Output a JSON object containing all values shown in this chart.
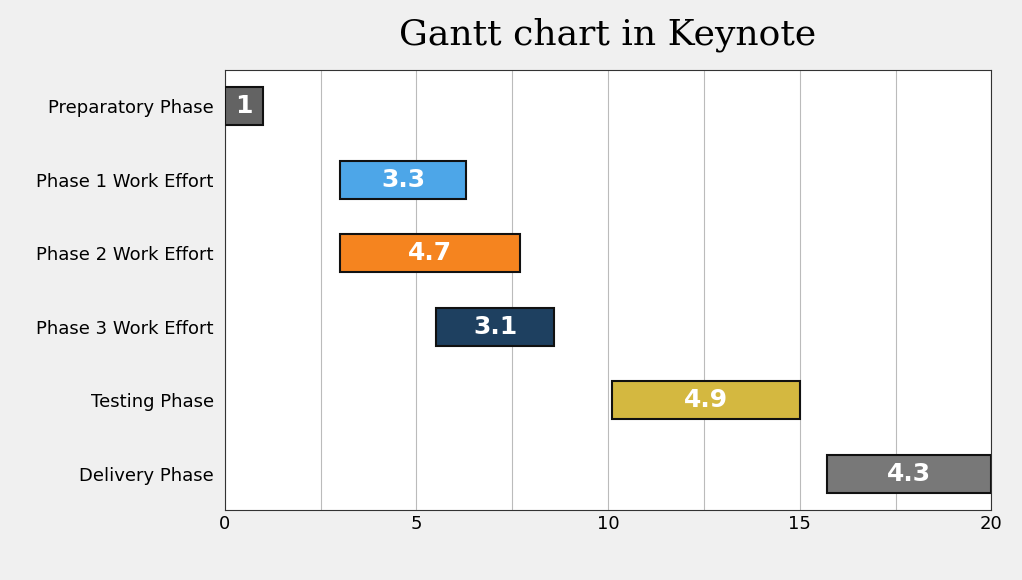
{
  "title": "Gantt chart in Keynote",
  "title_fontsize": 26,
  "title_fontfamily": "serif",
  "categories": [
    "Preparatory Phase",
    "Phase 1 Work Effort",
    "Phase 2 Work Effort",
    "Phase 3 Work Effort",
    "Testing Phase",
    "Delivery Phase"
  ],
  "starts": [
    0,
    3.0,
    3.0,
    5.5,
    10.1,
    15.7
  ],
  "widths": [
    1,
    3.3,
    4.7,
    3.1,
    4.9,
    4.3
  ],
  "colors": [
    "#636363",
    "#4da6e8",
    "#f5841f",
    "#1e4060",
    "#d4b840",
    "#787878"
  ],
  "label_colors": [
    "#ffffff",
    "#ffffff",
    "#ffffff",
    "#ffffff",
    "#ffffff",
    "#ffffff"
  ],
  "labels": [
    "1",
    "3.3",
    "4.7",
    "3.1",
    "4.9",
    "4.3"
  ],
  "bar_height": 0.52,
  "xlim": [
    0,
    20
  ],
  "xticks": [
    0,
    5,
    10,
    15,
    20
  ],
  "label_fontsize": 18,
  "ylabel_fontsize": 13,
  "tick_fontsize": 13,
  "background_color": "#f0f0f0",
  "plot_bg_color": "#ffffff",
  "grid_color": "#bbbbbb",
  "grid_xticks": [
    0,
    2.5,
    5,
    7.5,
    10,
    12.5,
    15,
    17.5,
    20
  ],
  "edge_color": "#111111",
  "edge_linewidth": 1.5
}
